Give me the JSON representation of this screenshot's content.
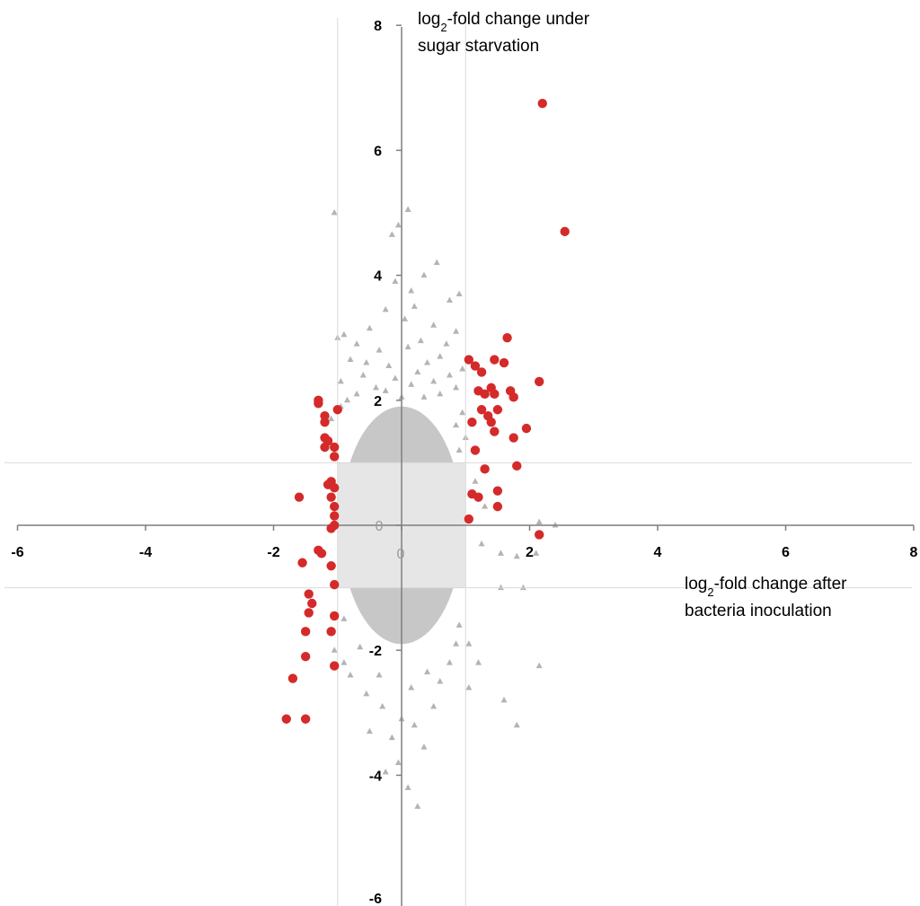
{
  "chart_data": {
    "type": "scatter",
    "title": "",
    "xlabel": {
      "pre": "log",
      "sub": "2",
      "post": "-fold change after",
      "line2": "bacteria inoculation"
    },
    "ylabel": {
      "pre": "log",
      "sub": "2",
      "post": "-fold change under",
      "line2": "sugar starvation"
    },
    "xlim": [
      -6,
      8
    ],
    "ylim": [
      -6,
      8
    ],
    "x_ticks": [
      "-6",
      "-4",
      "-2",
      "0",
      "2",
      "4",
      "6",
      "8"
    ],
    "y_ticks": [
      "8",
      "6",
      "4",
      "2",
      "0",
      "-2",
      "-4",
      "-6"
    ],
    "center_zero_labels": {
      "x": "0",
      "y": "0"
    },
    "thresholds": {
      "x": [
        -1,
        1
      ],
      "y": [
        -1,
        1
      ]
    },
    "grid": false,
    "colors": {
      "background_points": "#b4b4b4",
      "center_band": "#e6e6e6",
      "highlight": "#d42a2a",
      "threshold_lines": "#d9d9d9",
      "axis": "#7f7f7f"
    },
    "series": [
      {
        "marker": "triangle",
        "color": "#b4b4b4",
        "points": [
          [
            -1.05,
            5.0
          ],
          [
            0.1,
            5.05
          ],
          [
            -0.15,
            4.65
          ],
          [
            -0.05,
            4.8
          ],
          [
            0.55,
            4.2
          ],
          [
            0.35,
            4.0
          ],
          [
            -0.1,
            3.9
          ],
          [
            0.15,
            3.75
          ],
          [
            0.75,
            3.6
          ],
          [
            0.9,
            3.7
          ],
          [
            0.2,
            3.5
          ],
          [
            -0.25,
            3.45
          ],
          [
            0.05,
            3.3
          ],
          [
            0.5,
            3.2
          ],
          [
            0.85,
            3.1
          ],
          [
            -0.5,
            3.15
          ],
          [
            -1.0,
            3.0
          ],
          [
            -0.9,
            3.05
          ],
          [
            -0.7,
            2.9
          ],
          [
            0.3,
            2.95
          ],
          [
            0.7,
            2.9
          ],
          [
            -0.35,
            2.8
          ],
          [
            0.1,
            2.85
          ],
          [
            0.6,
            2.7
          ],
          [
            -0.8,
            2.65
          ],
          [
            -0.55,
            2.6
          ],
          [
            0.4,
            2.6
          ],
          [
            0.95,
            2.5
          ],
          [
            -0.2,
            2.55
          ],
          [
            0.25,
            2.45
          ],
          [
            -0.6,
            2.4
          ],
          [
            0.75,
            2.4
          ],
          [
            -0.95,
            2.3
          ],
          [
            -0.1,
            2.35
          ],
          [
            0.5,
            2.3
          ],
          [
            -0.4,
            2.2
          ],
          [
            0.85,
            2.2
          ],
          [
            0.15,
            2.25
          ],
          [
            -0.7,
            2.1
          ],
          [
            -0.25,
            2.15
          ],
          [
            0.6,
            2.1
          ],
          [
            0.35,
            2.05
          ],
          [
            -0.85,
            2.0
          ],
          [
            0.0,
            2.05
          ],
          [
            -1.1,
            1.7
          ],
          [
            -1.15,
            1.4
          ],
          [
            -1.05,
            1.1
          ],
          [
            0.95,
            1.8
          ],
          [
            1.0,
            1.4
          ],
          [
            0.9,
            1.2
          ],
          [
            0.85,
            1.6
          ],
          [
            -0.95,
            1.9
          ],
          [
            2.15,
            0.05
          ],
          [
            2.4,
            0.0
          ],
          [
            1.3,
            0.3
          ],
          [
            1.15,
            0.7
          ],
          [
            1.25,
            -0.3
          ],
          [
            1.55,
            -0.45
          ],
          [
            1.8,
            -0.5
          ],
          [
            1.9,
            -1.0
          ],
          [
            1.55,
            -1.0
          ],
          [
            2.1,
            -0.45
          ],
          [
            1.05,
            -1.9
          ],
          [
            1.2,
            -2.2
          ],
          [
            1.05,
            -2.6
          ],
          [
            2.15,
            -2.25
          ],
          [
            1.6,
            -2.8
          ],
          [
            1.8,
            -3.2
          ],
          [
            -1.05,
            -2.0
          ],
          [
            -0.9,
            -2.2
          ],
          [
            -0.8,
            -2.4
          ],
          [
            -0.55,
            -2.7
          ],
          [
            -0.3,
            -2.9
          ],
          [
            0.0,
            -3.1
          ],
          [
            0.2,
            -3.2
          ],
          [
            -0.15,
            -3.4
          ],
          [
            0.35,
            -3.55
          ],
          [
            -0.05,
            -3.8
          ],
          [
            -0.25,
            -3.95
          ],
          [
            0.1,
            -4.2
          ],
          [
            0.25,
            -4.5
          ],
          [
            -0.5,
            -3.3
          ],
          [
            0.5,
            -2.9
          ],
          [
            0.6,
            -2.5
          ],
          [
            0.75,
            -2.2
          ],
          [
            0.85,
            -1.9
          ],
          [
            -0.65,
            -1.95
          ],
          [
            -0.35,
            -2.4
          ],
          [
            0.15,
            -2.6
          ],
          [
            0.4,
            -2.35
          ],
          [
            -0.9,
            -1.5
          ],
          [
            0.9,
            -1.6
          ]
        ]
      },
      {
        "marker": "circle",
        "color": "#d42a2a",
        "points": [
          [
            2.2,
            6.75
          ],
          [
            2.55,
            4.7
          ],
          [
            1.65,
            3.0
          ],
          [
            1.05,
            2.65
          ],
          [
            1.15,
            2.55
          ],
          [
            1.25,
            2.45
          ],
          [
            1.45,
            2.65
          ],
          [
            1.6,
            2.6
          ],
          [
            2.15,
            2.3
          ],
          [
            1.3,
            2.1
          ],
          [
            1.4,
            2.2
          ],
          [
            1.2,
            2.15
          ],
          [
            1.45,
            2.1
          ],
          [
            1.7,
            2.15
          ],
          [
            1.75,
            2.05
          ],
          [
            1.25,
            1.85
          ],
          [
            1.35,
            1.75
          ],
          [
            1.5,
            1.85
          ],
          [
            1.4,
            1.65
          ],
          [
            1.1,
            1.65
          ],
          [
            1.45,
            1.5
          ],
          [
            1.95,
            1.55
          ],
          [
            1.75,
            1.4
          ],
          [
            1.15,
            1.2
          ],
          [
            1.8,
            0.95
          ],
          [
            1.3,
            0.9
          ],
          [
            1.1,
            0.5
          ],
          [
            1.2,
            0.45
          ],
          [
            1.5,
            0.55
          ],
          [
            1.5,
            0.3
          ],
          [
            1.05,
            0.1
          ],
          [
            2.15,
            -0.15
          ],
          [
            -1.3,
            2.0
          ],
          [
            -1.3,
            1.95
          ],
          [
            -1.2,
            1.75
          ],
          [
            -1.2,
            1.65
          ],
          [
            -1.0,
            1.85
          ],
          [
            -1.2,
            1.4
          ],
          [
            -1.15,
            1.35
          ],
          [
            -1.2,
            1.25
          ],
          [
            -1.05,
            1.25
          ],
          [
            -1.05,
            1.1
          ],
          [
            -1.1,
            0.7
          ],
          [
            -1.05,
            0.6
          ],
          [
            -1.15,
            0.65
          ],
          [
            -1.1,
            0.45
          ],
          [
            -1.6,
            0.45
          ],
          [
            -1.05,
            0.3
          ],
          [
            -1.05,
            0.15
          ],
          [
            -1.05,
            0.0
          ],
          [
            -1.1,
            -0.05
          ],
          [
            -1.3,
            -0.4
          ],
          [
            -1.25,
            -0.45
          ],
          [
            -1.55,
            -0.6
          ],
          [
            -1.1,
            -0.65
          ],
          [
            -1.05,
            -0.95
          ],
          [
            -1.45,
            -1.1
          ],
          [
            -1.4,
            -1.25
          ],
          [
            -1.45,
            -1.4
          ],
          [
            -1.05,
            -1.45
          ],
          [
            -1.5,
            -1.7
          ],
          [
            -1.1,
            -1.7
          ],
          [
            -1.5,
            -2.1
          ],
          [
            -1.05,
            -2.25
          ],
          [
            -1.7,
            -2.45
          ],
          [
            -1.8,
            -3.1
          ],
          [
            -1.5,
            -3.1
          ]
        ]
      }
    ]
  }
}
